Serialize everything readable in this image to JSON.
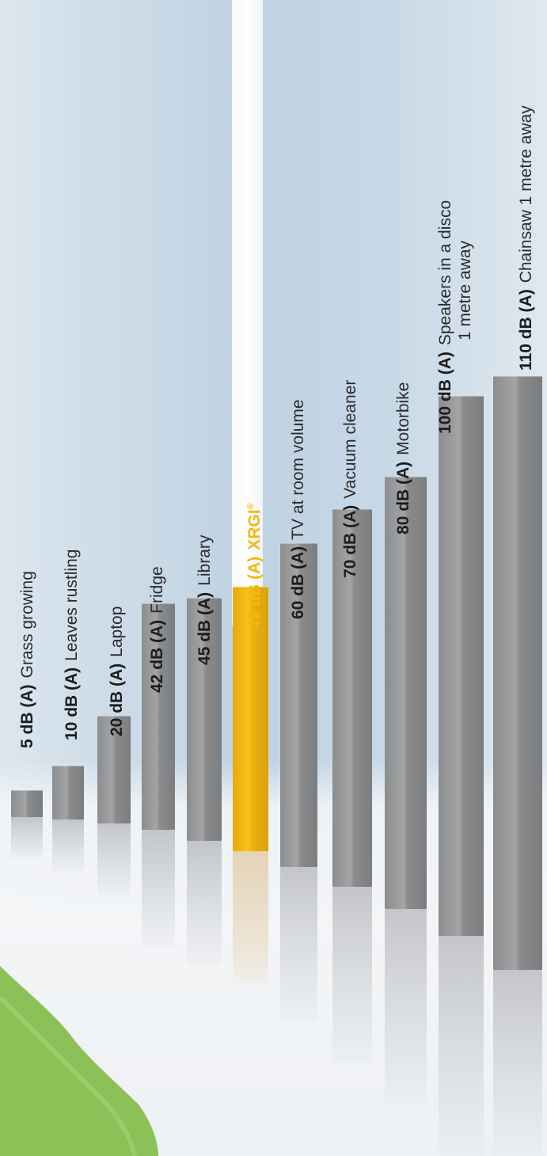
{
  "chart_data": {
    "type": "bar",
    "orientation": "rotated-90",
    "unit": "dB (A)",
    "categories": [
      "Grass growing",
      "Leaves rustling",
      "Laptop",
      "Fridge",
      "Library",
      "XRGI",
      "TV at room volume",
      "Vacuum cleaner",
      "Motorbike",
      "Speakers in a disco 1 metre away",
      "Chainsaw 1 metre away"
    ],
    "values": [
      5,
      10,
      20,
      42,
      45,
      49,
      60,
      70,
      80,
      100,
      110
    ],
    "highlight_index": 5,
    "colors": {
      "bar": "#939496",
      "highlight": "#f3b912",
      "text": "#1d1d1f"
    }
  },
  "labels": [
    {
      "value": "5 dB (A)",
      "text": "Grass growing"
    },
    {
      "value": "10 dB (A)",
      "text": "Leaves rustling"
    },
    {
      "value": "20 dB (A)",
      "text": "Laptop"
    },
    {
      "value": "42 dB (A)",
      "text": "Fridge"
    },
    {
      "value": "45 dB (A)",
      "text": "Library"
    },
    {
      "value": "49 dB (A)",
      "text": "XRGI",
      "sup": "®"
    },
    {
      "value": "60 dB (A)",
      "text": "TV at room volume"
    },
    {
      "value": "70 dB (A)",
      "text": "Vacuum cleaner"
    },
    {
      "value": "80 dB (A)",
      "text": "Motorbike"
    },
    {
      "value": "100 dB (A)",
      "text": "Speakers in a disco",
      "text2": "1 metre away"
    },
    {
      "value": "110 dB (A)",
      "text": "Chainsaw 1 metre away"
    }
  ]
}
